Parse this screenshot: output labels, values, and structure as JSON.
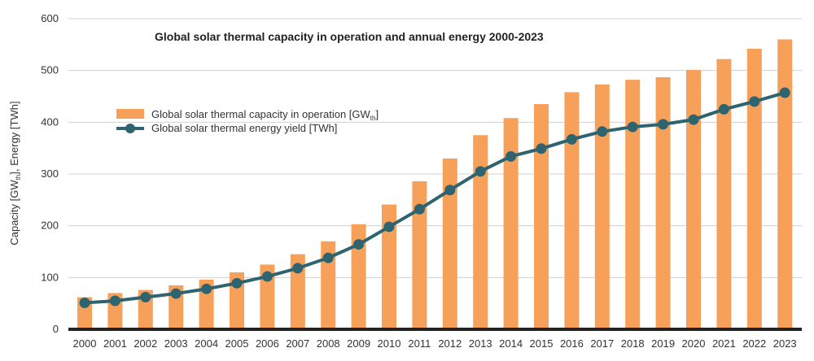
{
  "chart_data": {
    "type": "bar",
    "title": "Global solar thermal capacity in operation and annual energy 2000-2023",
    "ylabel": {
      "main": "Capacity [GW",
      "sub": "th",
      "rest": "], Energy [TWh]"
    },
    "ylim": [
      0,
      600
    ],
    "yticks": [
      0,
      100,
      200,
      300,
      400,
      500,
      600
    ],
    "grid": true,
    "legend_position": "upper-left",
    "categories": [
      "2000",
      "2001",
      "2002",
      "2003",
      "2004",
      "2005",
      "2006",
      "2007",
      "2008",
      "2009",
      "2010",
      "2011",
      "2012",
      "2013",
      "2014",
      "2015",
      "2016",
      "2017",
      "2018",
      "2019",
      "2020",
      "2021",
      "2022",
      "2023"
    ],
    "series": [
      {
        "name": "Global solar thermal capacity in operation [GW",
        "name_sub": "th",
        "name_rest": "]",
        "kind": "bar",
        "color": "#f7a05a",
        "values": [
          62,
          70,
          76,
          85,
          96,
          110,
          125,
          145,
          170,
          203,
          241,
          286,
          330,
          375,
          408,
          435,
          458,
          473,
          482,
          487,
          501,
          522,
          542,
          560
        ]
      },
      {
        "name": "Global solar thermal energy yield [TWh]",
        "kind": "line",
        "color": "#2e6470",
        "values": [
          51,
          55,
          62,
          69,
          78,
          89,
          102,
          118,
          138,
          164,
          198,
          232,
          269,
          305,
          334,
          349,
          367,
          382,
          391,
          396,
          405,
          425,
          440,
          457
        ]
      }
    ]
  }
}
